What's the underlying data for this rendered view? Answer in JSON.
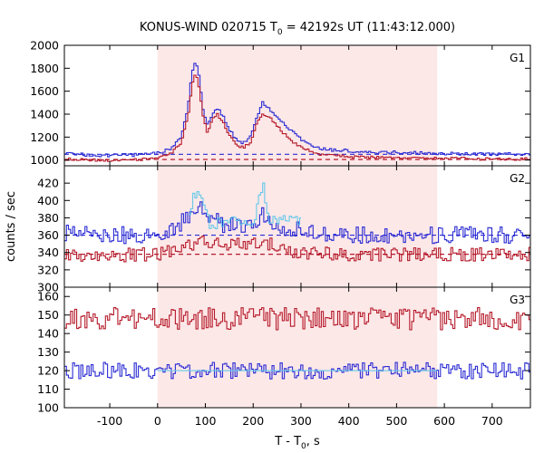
{
  "chart_data": {
    "type": "line",
    "title": "KONUS-WIND 020715 T",
    "title_sub": "0",
    "title_rest": " = 42192s UT (11:43:12.000)",
    "xlabel": "T - T",
    "xlabel_sub": "0",
    "xlabel_rest": ", s",
    "ylabel": "counts / sec",
    "xlim": [
      -195,
      780
    ],
    "xticks": [
      -100,
      0,
      100,
      200,
      300,
      400,
      500,
      600,
      700
    ],
    "shaded_interval": [
      0,
      585
    ],
    "shade_color": "#fde8e8",
    "colors": {
      "blue": "#2b2bd4",
      "red": "#b51a2a",
      "cyan": "#66c8e8"
    },
    "panels": [
      {
        "name": "G1",
        "ylim": [
          950,
          2000
        ],
        "yticks": [
          1000,
          1200,
          1400,
          1600,
          1800,
          2000
        ],
        "background_levels": [
          {
            "series": "blue",
            "value": 1050,
            "style": "dashed"
          },
          {
            "series": "red",
            "value": 1005,
            "style": "dashed"
          }
        ],
        "series": [
          {
            "color": "blue",
            "anchors": [
              [
                -195,
                1060
              ],
              [
                -150,
                1045
              ],
              [
                -100,
                1040
              ],
              [
                -50,
                1045
              ],
              [
                0,
                1060
              ],
              [
                30,
                1100
              ],
              [
                50,
                1200
              ],
              [
                65,
                1500
              ],
              [
                72,
                1760
              ],
              [
                80,
                1860
              ],
              [
                88,
                1700
              ],
              [
                95,
                1450
              ],
              [
                105,
                1310
              ],
              [
                115,
                1400
              ],
              [
                125,
                1450
              ],
              [
                135,
                1400
              ],
              [
                150,
                1270
              ],
              [
                165,
                1170
              ],
              [
                180,
                1150
              ],
              [
                195,
                1200
              ],
              [
                210,
                1400
              ],
              [
                220,
                1500
              ],
              [
                230,
                1470
              ],
              [
                245,
                1400
              ],
              [
                260,
                1330
              ],
              [
                280,
                1250
              ],
              [
                300,
                1180
              ],
              [
                330,
                1110
              ],
              [
                360,
                1090
              ],
              [
                400,
                1080
              ],
              [
                450,
                1070
              ],
              [
                500,
                1065
              ],
              [
                550,
                1060
              ],
              [
                600,
                1055
              ],
              [
                650,
                1055
              ],
              [
                700,
                1050
              ],
              [
                780,
                1050
              ]
            ],
            "noise": 14
          },
          {
            "color": "red",
            "anchors": [
              [
                -195,
                1010
              ],
              [
                -150,
                1000
              ],
              [
                -100,
                995
              ],
              [
                -50,
                1000
              ],
              [
                0,
                1020
              ],
              [
                30,
                1060
              ],
              [
                50,
                1150
              ],
              [
                65,
                1420
              ],
              [
                72,
                1650
              ],
              [
                80,
                1760
              ],
              [
                88,
                1600
              ],
              [
                95,
                1400
              ],
              [
                105,
                1230
              ],
              [
                115,
                1370
              ],
              [
                125,
                1400
              ],
              [
                135,
                1340
              ],
              [
                150,
                1220
              ],
              [
                165,
                1130
              ],
              [
                180,
                1110
              ],
              [
                195,
                1150
              ],
              [
                210,
                1340
              ],
              [
                220,
                1400
              ],
              [
                230,
                1380
              ],
              [
                245,
                1330
              ],
              [
                260,
                1250
              ],
              [
                280,
                1170
              ],
              [
                300,
                1110
              ],
              [
                330,
                1060
              ],
              [
                360,
                1040
              ],
              [
                400,
                1030
              ],
              [
                450,
                1025
              ],
              [
                500,
                1020
              ],
              [
                550,
                1018
              ],
              [
                600,
                1015
              ],
              [
                650,
                1012
              ],
              [
                700,
                1010
              ],
              [
                780,
                1010
              ]
            ],
            "noise": 12
          }
        ]
      },
      {
        "name": "G2",
        "ylim": [
          300,
          440
        ],
        "yticks": [
          300,
          320,
          340,
          360,
          380,
          400,
          420
        ],
        "background_levels": [
          {
            "series": "blue",
            "value": 360,
            "style": "dashed"
          },
          {
            "series": "red",
            "value": 338,
            "style": "dashed"
          }
        ],
        "series": [
          {
            "color": "blue",
            "anchors": [
              [
                -195,
                362
              ],
              [
                -100,
                360
              ],
              [
                0,
                360
              ],
              [
                40,
                370
              ],
              [
                70,
                385
              ],
              [
                90,
                392
              ],
              [
                110,
                378
              ],
              [
                150,
                370
              ],
              [
                200,
                372
              ],
              [
                220,
                385
              ],
              [
                240,
                372
              ],
              [
                280,
                368
              ],
              [
                320,
                362
              ],
              [
                400,
                360
              ],
              [
                500,
                360
              ],
              [
                600,
                360
              ],
              [
                700,
                360
              ],
              [
                780,
                360
              ]
            ],
            "noise": 10
          },
          {
            "color": "red",
            "anchors": [
              [
                -195,
                338
              ],
              [
                -100,
                337
              ],
              [
                0,
                338
              ],
              [
                50,
                345
              ],
              [
                90,
                352
              ],
              [
                130,
                350
              ],
              [
                180,
                348
              ],
              [
                220,
                352
              ],
              [
                260,
                345
              ],
              [
                300,
                340
              ],
              [
                400,
                338
              ],
              [
                500,
                338
              ],
              [
                600,
                338
              ],
              [
                700,
                338
              ],
              [
                780,
                338
              ]
            ],
            "noise": 8
          },
          {
            "color": "cyan",
            "anchors": [
              [
                65,
                380
              ],
              [
                75,
                405
              ],
              [
                90,
                410
              ],
              [
                100,
                395
              ],
              [
                110,
                370
              ],
              [
                130,
                375
              ],
              [
                150,
                378
              ],
              [
                170,
                376
              ],
              [
                190,
                374
              ],
              [
                205,
                378
              ],
              [
                215,
                410
              ],
              [
                222,
                418
              ],
              [
                230,
                380
              ],
              [
                250,
                378
              ],
              [
                270,
                380
              ],
              [
                290,
                378
              ],
              [
                300,
                376
              ]
            ],
            "noise": 6
          }
        ]
      },
      {
        "name": "G3",
        "ylim": [
          100,
          165
        ],
        "yticks": [
          100,
          110,
          120,
          130,
          140,
          150,
          160
        ],
        "background_levels": [],
        "series": [
          {
            "color": "red",
            "anchors": [
              [
                -195,
                148
              ],
              [
                0,
                148
              ],
              [
                200,
                148
              ],
              [
                400,
                148
              ],
              [
                600,
                148
              ],
              [
                780,
                148
              ]
            ],
            "noise": 6
          },
          {
            "color": "blue",
            "anchors": [
              [
                -195,
                120
              ],
              [
                0,
                120
              ],
              [
                200,
                120
              ],
              [
                400,
                120
              ],
              [
                600,
                120
              ],
              [
                780,
                120
              ]
            ],
            "noise": 4.5
          },
          {
            "color": "cyan",
            "anchors": [
              [
                0,
                120
              ],
              [
                585,
                120
              ]
            ],
            "noise": 0
          }
        ]
      }
    ]
  }
}
